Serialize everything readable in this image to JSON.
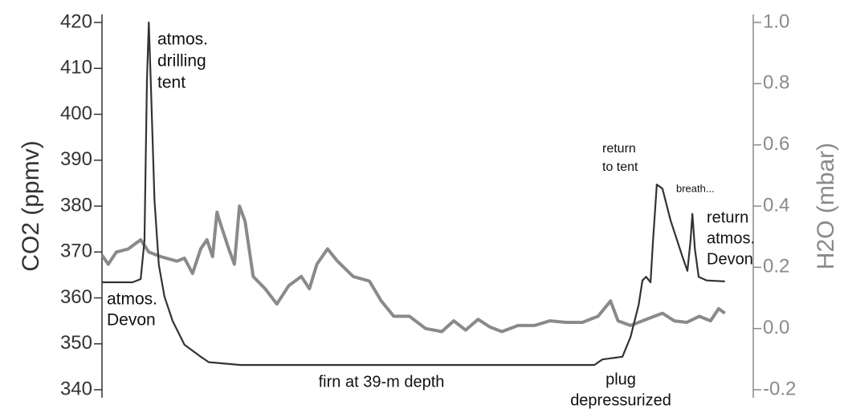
{
  "chart_data": {
    "type": "line",
    "ylabel": "CO2 (ppmv)",
    "y2label": "H2O (mbar)",
    "xlim": [
      0,
      100
    ],
    "ylim": [
      340,
      420
    ],
    "yticks": [
      340,
      350,
      360,
      370,
      380,
      390,
      400,
      410,
      420
    ],
    "y2lim": [
      -0.2,
      1.0
    ],
    "y2ticks": [
      -0.2,
      {
        "value": 0,
        "label": "0.0"
      },
      0.2,
      0.4,
      0.6,
      0.8,
      {
        "value": 1,
        "label": "1.0"
      }
    ],
    "series": [
      {
        "name": "CO2",
        "color": "#333333",
        "x": [
          0,
          4.9,
          6.2,
          6.8,
          7.2,
          7.5,
          7.8,
          8.4,
          9.1,
          10.0,
          11.3,
          13.2,
          15.8,
          17.1,
          22.2,
          78.8,
          80.1,
          83.3,
          84.6,
          85.9,
          86.5,
          87.1,
          87.8,
          88.2,
          88.8,
          89.7,
          91.0,
          92.9,
          93.7,
          94.2,
          94.5,
          94.9,
          95.5,
          96.8,
          99.7
        ],
        "values": [
          363.4,
          363.4,
          364.1,
          372.5,
          407.4,
          420,
          407.4,
          381.2,
          367.2,
          360.3,
          355,
          349.8,
          347.2,
          346,
          345.4,
          345.4,
          346.6,
          347.2,
          351.5,
          358.5,
          363.8,
          364.6,
          363.4,
          372.5,
          384.7,
          383.8,
          376.9,
          369,
          365.9,
          372.5,
          378.3,
          370.7,
          364.6,
          363.8,
          363.6
        ]
      },
      {
        "name": "H2O",
        "color": "#8a8a8a",
        "axis": "y2",
        "x": [
          0,
          1.0,
          2.3,
          4.2,
          6.2,
          7.5,
          9.4,
          12.0,
          13.2,
          14.5,
          15.8,
          16.8,
          17.7,
          18.4,
          19.0,
          20.3,
          21.2,
          22.0,
          22.9,
          24.2,
          26.1,
          28.0,
          29.9,
          31.9,
          33.2,
          34.4,
          36.1,
          37.7,
          40.2,
          42.8,
          44.7,
          46.7,
          49.2,
          51.8,
          54.4,
          56.3,
          58.2,
          60.2,
          62.1,
          64.0,
          66.6,
          69.2,
          71.7,
          74.3,
          76.9,
          79.4,
          81.4,
          82.6,
          84.6,
          86.5,
          88.4,
          89.7,
          91.6,
          93.6,
          95.6,
          97.4,
          98.7,
          99.7
        ],
        "values": [
          0.24,
          0.21,
          0.25,
          0.26,
          0.29,
          0.25,
          0.235,
          0.22,
          0.23,
          0.18,
          0.26,
          0.29,
          0.235,
          0.38,
          0.34,
          0.26,
          0.21,
          0.4,
          0.35,
          0.17,
          0.13,
          0.08,
          0.14,
          0.17,
          0.13,
          0.21,
          0.26,
          0.22,
          0.17,
          0.155,
          0.09,
          0.04,
          0.04,
          0.0,
          -0.01,
          0.025,
          -0.005,
          0.03,
          0.005,
          -0.01,
          0.01,
          0.01,
          0.025,
          0.02,
          0.02,
          0.04,
          0.09,
          0.025,
          0.01,
          0.025,
          0.04,
          0.05,
          0.025,
          0.02,
          0.04,
          0.025,
          0.065,
          0.05
        ]
      }
    ],
    "annotations": [
      {
        "lines": [
          "atmos.",
          "drilling",
          "tent"
        ]
      },
      {
        "lines": [
          "atmos.",
          "Devon"
        ]
      },
      {
        "lines": [
          "firn at 39-m depth"
        ]
      },
      {
        "lines": [
          "plug",
          "depressurized"
        ]
      },
      {
        "lines": [
          "return",
          "to tent"
        ]
      },
      {
        "lines": [
          "breath..."
        ]
      },
      {
        "lines": [
          "return",
          "atmos.",
          "Devon"
        ]
      }
    ]
  }
}
